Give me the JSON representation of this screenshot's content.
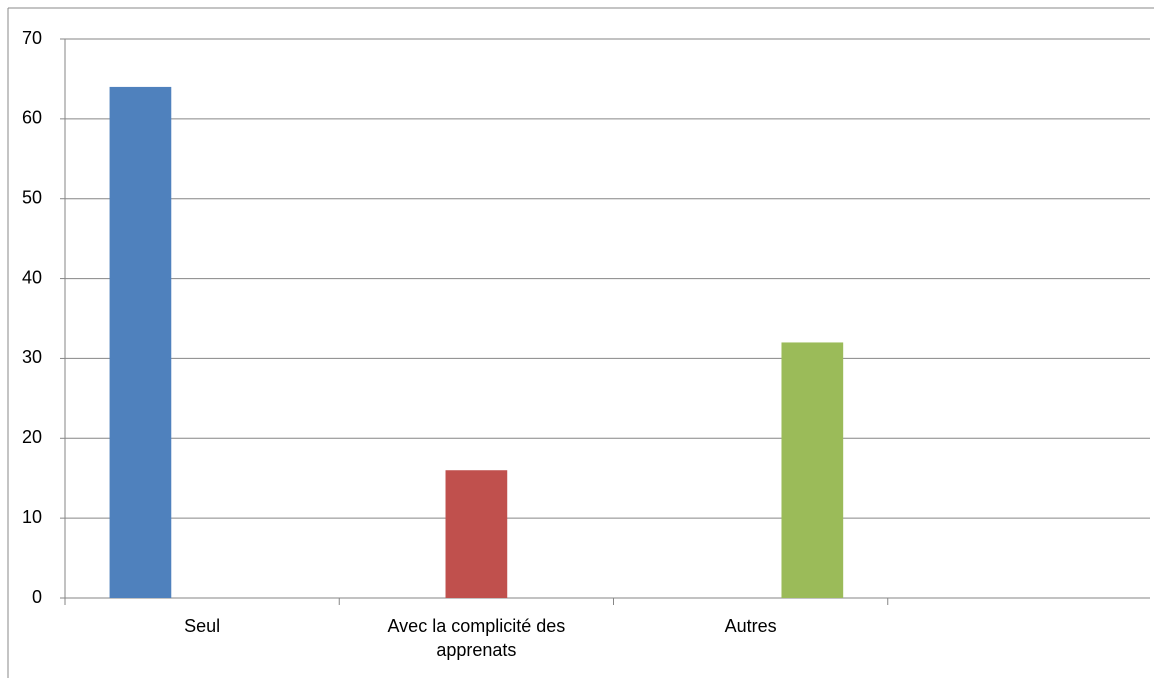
{
  "chart_data": {
    "type": "bar",
    "categories": [
      "Seul",
      "Avec la complicité des apprenats",
      "Autres",
      null
    ],
    "series": [
      {
        "color": "#4f81bd",
        "values": [
          64,
          null,
          null,
          null
        ]
      },
      {
        "color": "#c0504d",
        "values": [
          null,
          16,
          null,
          null
        ]
      },
      {
        "color": "#9bbb59",
        "values": [
          null,
          null,
          32,
          null
        ]
      }
    ],
    "ylim": [
      0,
      70
    ],
    "yticks": [
      0,
      10,
      20,
      30,
      40,
      50,
      60,
      70
    ],
    "grid": true
  }
}
